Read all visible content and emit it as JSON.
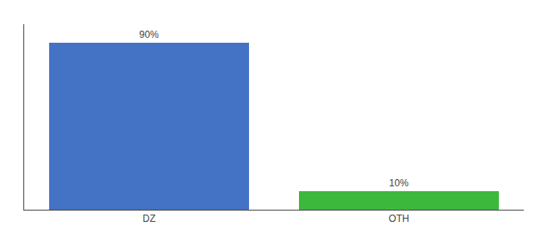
{
  "chart_data": {
    "type": "bar",
    "categories": [
      "DZ",
      "OTH"
    ],
    "values": [
      90,
      10
    ],
    "value_labels": [
      "90%",
      "10%"
    ],
    "colors": [
      "#4472c4",
      "#3cb83c"
    ],
    "ylim": [
      0,
      100
    ],
    "data_labels": true,
    "tick_labels": "x",
    "grid": false
  }
}
